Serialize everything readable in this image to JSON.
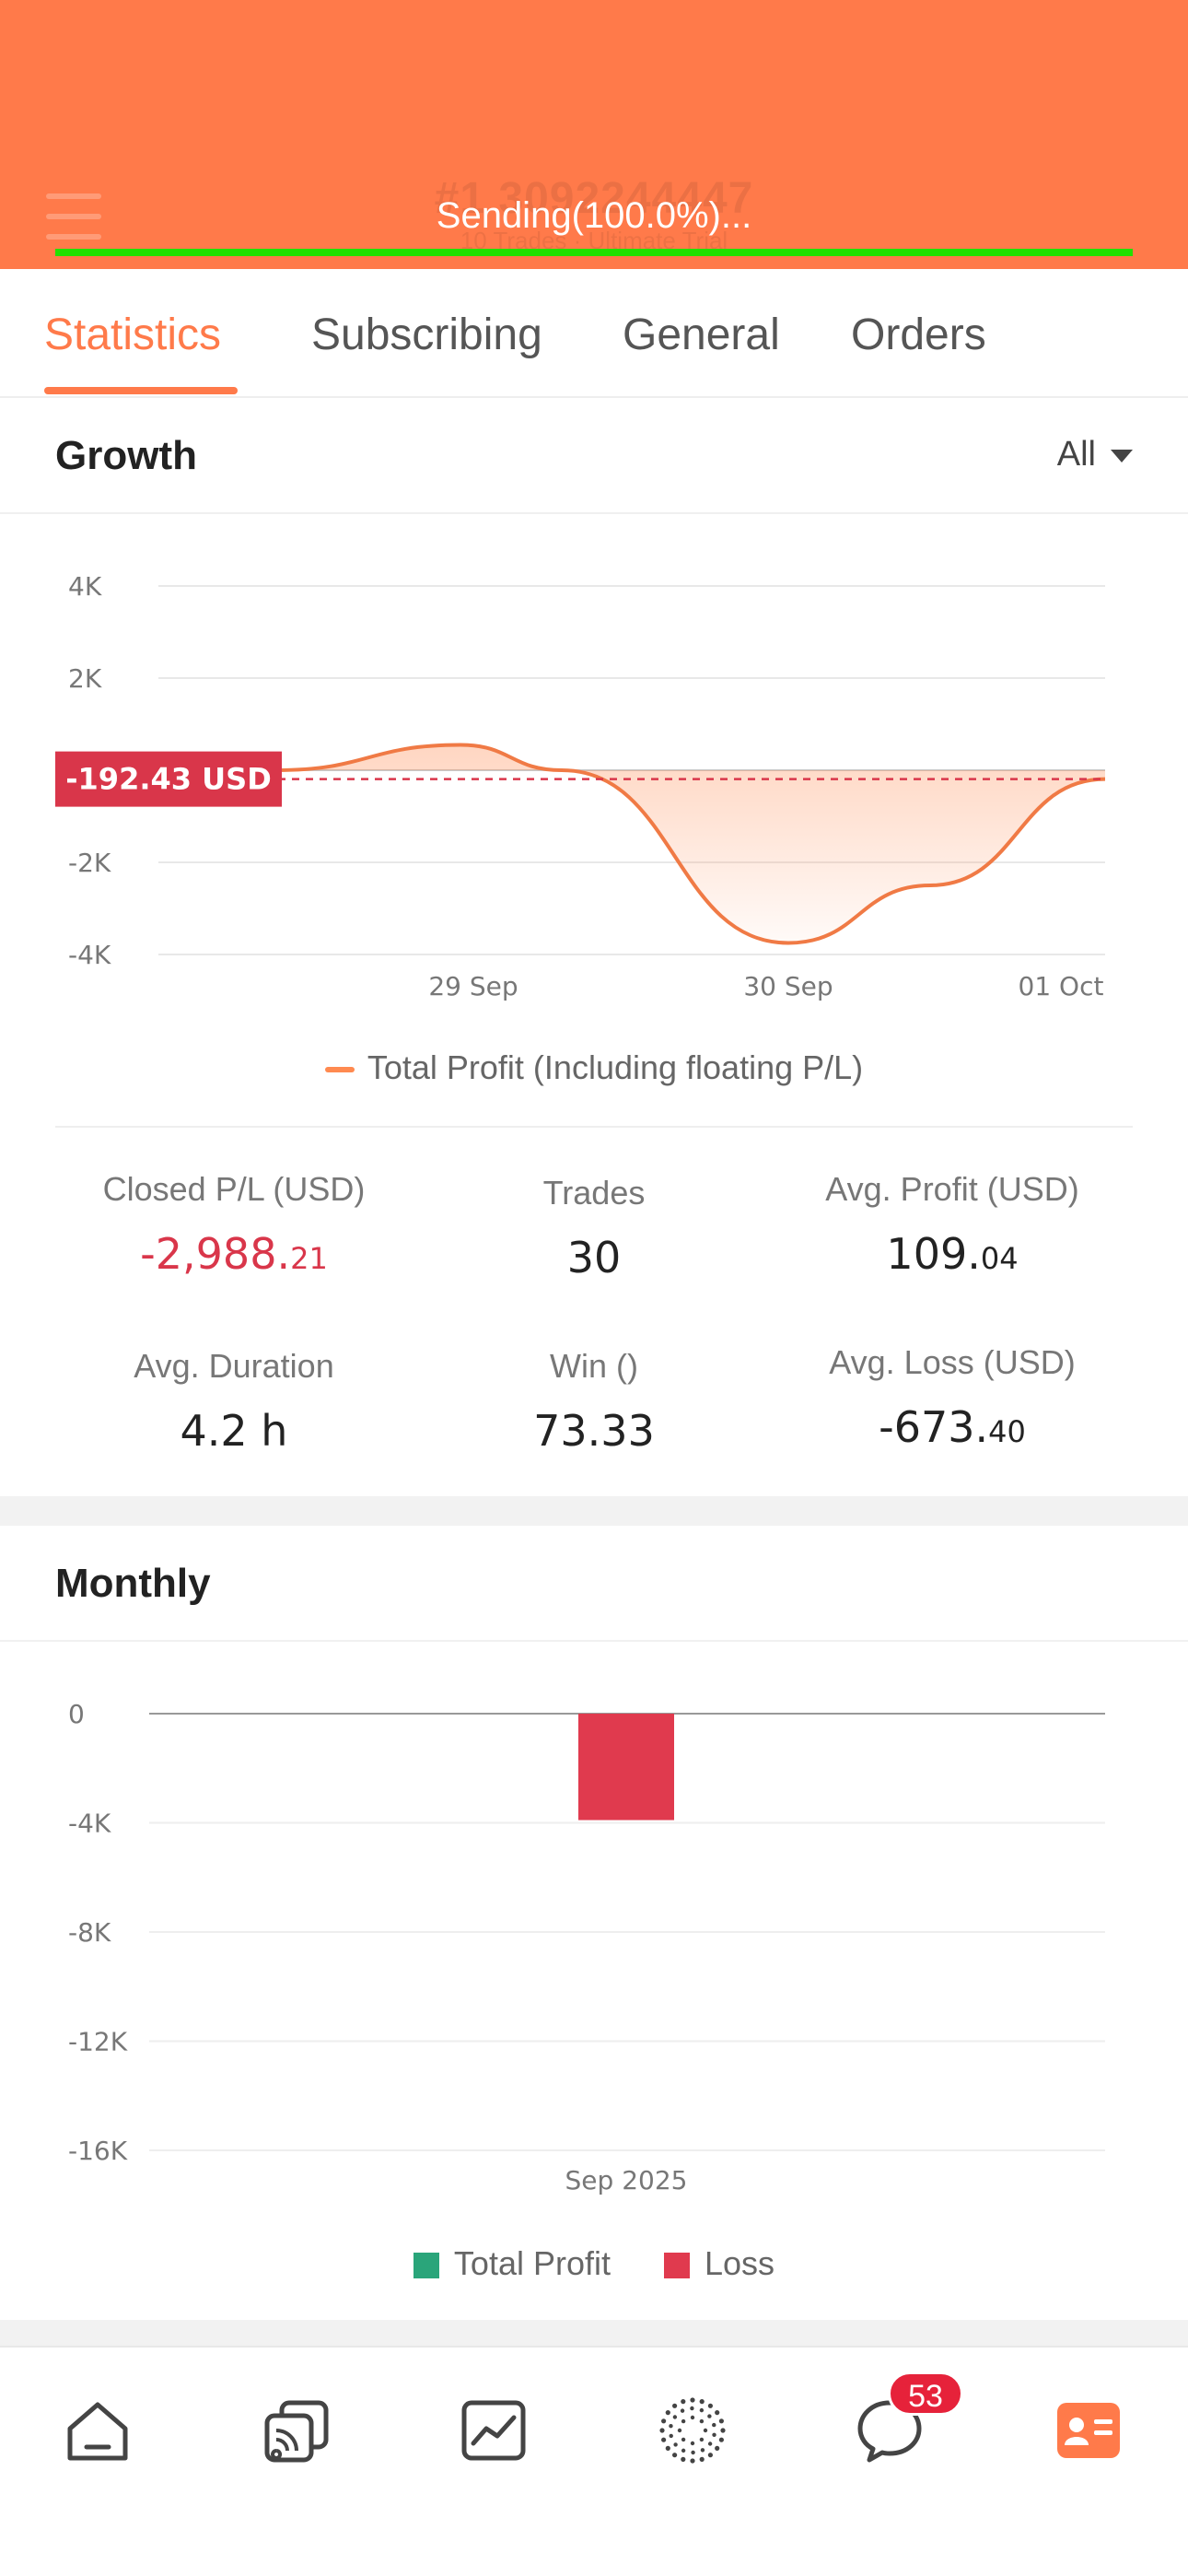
{
  "header": {
    "account_title": "#1 3092244447",
    "account_sub": "10 Trades · Ultimate Trial",
    "sending_text": "Sending(100.0%)...",
    "progress": 1.0,
    "background_color": "#ff7a4a"
  },
  "tabs": [
    {
      "label": "Statistics",
      "active": true
    },
    {
      "label": "Subscribing",
      "active": false
    },
    {
      "label": "General",
      "active": false
    },
    {
      "label": "Orders",
      "active": false
    }
  ],
  "growth": {
    "title": "Growth",
    "filter_label": "All"
  },
  "chart_data": [
    {
      "type": "area",
      "title": "",
      "y_ticks": [
        "4K",
        "2K",
        "-2K",
        "-4K"
      ],
      "ylim": [
        -4000,
        4000
      ],
      "x_ticks": [
        "29 Sep",
        "30 Sep",
        "01 Oct"
      ],
      "series": [
        {
          "name": "Total Profit (Including floating P/L)",
          "color": "#ff8a50",
          "x": [
            "28 Sep",
            "29 Sep",
            "29 Sep",
            "30 Sep",
            "30 Sep",
            "01 Oct"
          ],
          "values": [
            0,
            550,
            0,
            -3750,
            -2500,
            -192.43
          ]
        }
      ],
      "current_label": "-192.43 USD",
      "current_value": -192.43,
      "grid": true
    },
    {
      "type": "bar",
      "title": "",
      "y_ticks": [
        "0",
        "-4K",
        "-8K",
        "-12K",
        "-16K"
      ],
      "ylim": [
        -16000,
        0
      ],
      "categories": [
        "Sep 2025"
      ],
      "series": [
        {
          "name": "Total Profit",
          "color": "#2aa57a",
          "values": [
            0
          ]
        },
        {
          "name": "Loss",
          "color": "#e03a4e",
          "values": [
            -3900
          ]
        }
      ],
      "grid": true
    }
  ],
  "stats": {
    "closed_pl": {
      "label": "Closed P/L (USD)",
      "int": "-2,988.",
      "dec": "21"
    },
    "trades": {
      "label": "Trades",
      "value": "30"
    },
    "avg_profit": {
      "label": "Avg. Profit (USD)",
      "int": "109.",
      "dec": "04"
    },
    "avg_duration": {
      "label": "Avg. Duration",
      "value": "4.2 h"
    },
    "win": {
      "label": "Win ()",
      "value": "73.33"
    },
    "avg_loss": {
      "label": "Avg. Loss (USD)",
      "int": "-673.",
      "dec": "40"
    }
  },
  "monthly": {
    "title": "Monthly"
  },
  "nav": {
    "items": [
      "home-icon",
      "copy-trading-icon",
      "chart-icon",
      "community-icon",
      "chat-icon",
      "profile-card-icon"
    ],
    "chat_badge": "53",
    "active_color": "#ff7a4a"
  }
}
